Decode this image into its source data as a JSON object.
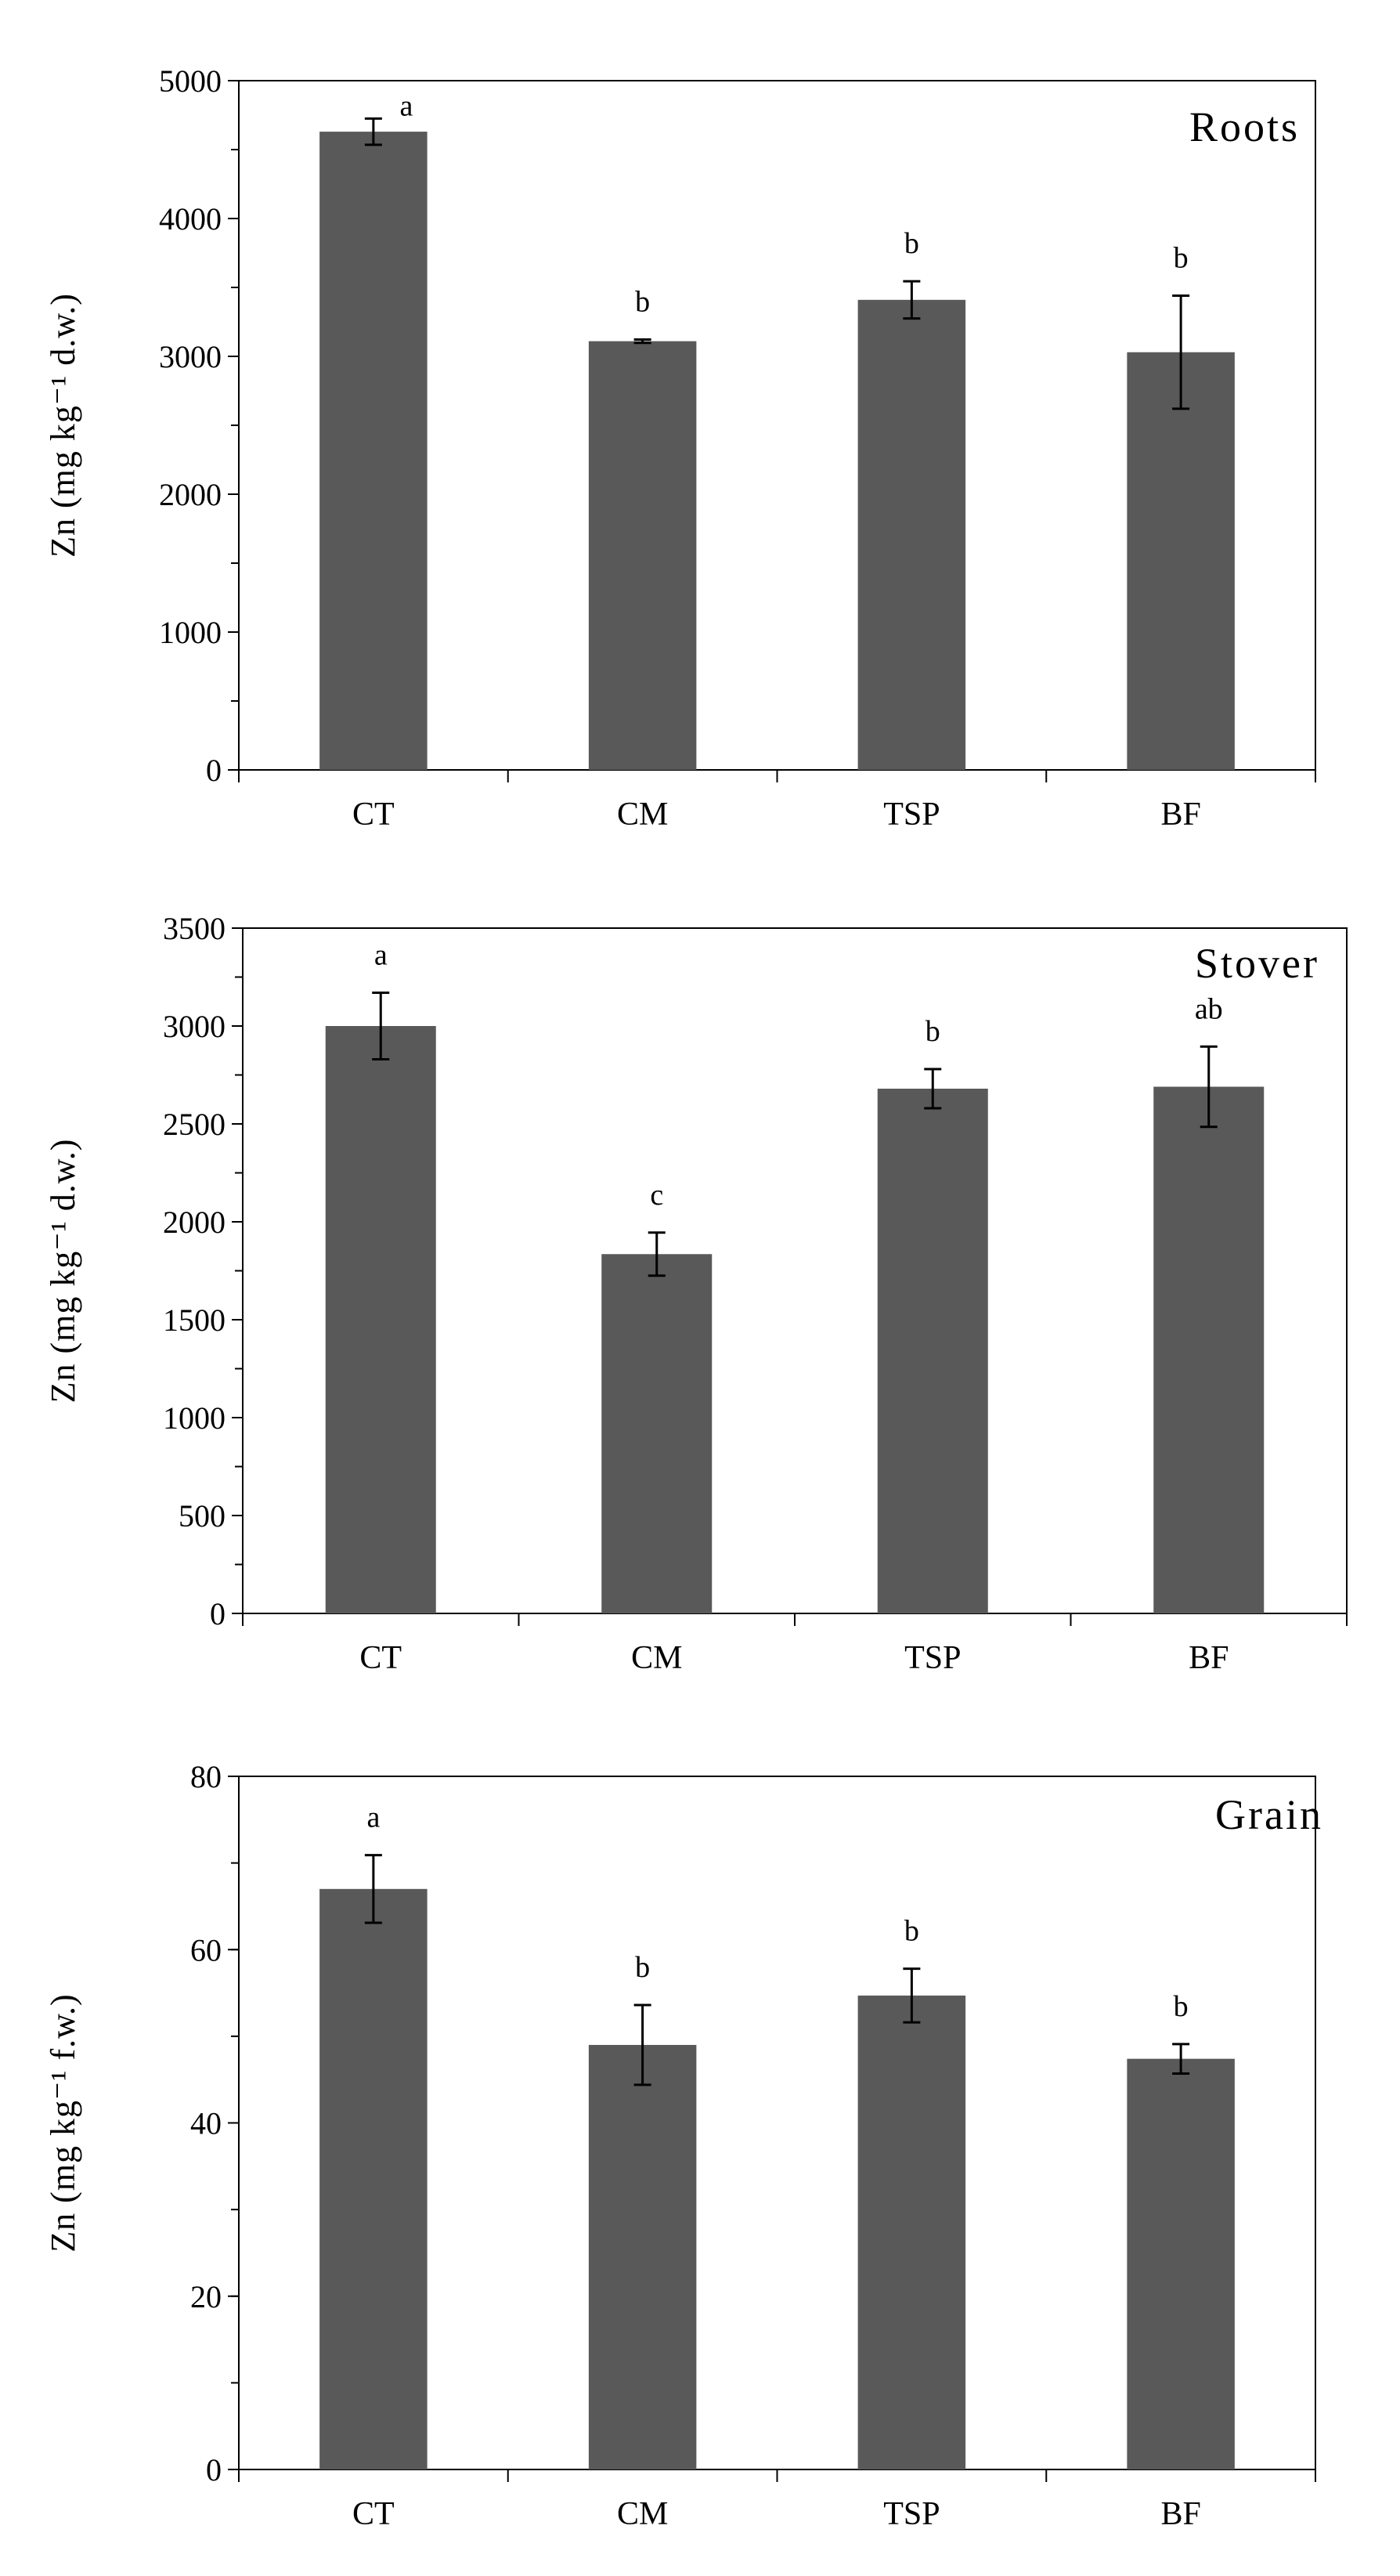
{
  "figure": {
    "bar_color": "#595959",
    "axis_color": "#000000",
    "background": "#ffffff"
  },
  "chart_data": [
    {
      "type": "bar",
      "title": "Roots",
      "categories": [
        "CT",
        "CM",
        "TSP",
        "BF"
      ],
      "values": [
        4630,
        3110,
        3410,
        3030
      ],
      "errors": [
        95,
        12,
        135,
        410
      ],
      "letters": [
        "a",
        "b",
        "b",
        "b"
      ],
      "xlabel": "",
      "ylabel": "Zn (mg kg⁻¹ d.w.)",
      "ylim": [
        0,
        5000
      ],
      "yticks": [
        0,
        1000,
        2000,
        3000,
        4000,
        5000
      ],
      "ytick_labels": [
        "0",
        "1000",
        "2000",
        "3000",
        "4000",
        "5000"
      ],
      "minor_step": 500,
      "legend": "none",
      "grid": false
    },
    {
      "type": "bar",
      "title": "Stover",
      "categories": [
        "CT",
        "CM",
        "TSP",
        "BF"
      ],
      "values": [
        3000,
        1835,
        2680,
        2690
      ],
      "errors": [
        170,
        110,
        100,
        205
      ],
      "letters": [
        "a",
        "c",
        "b",
        "ab"
      ],
      "xlabel": "",
      "ylabel": "Zn (mg kg⁻¹ d.w.)",
      "ylim": [
        0,
        3500
      ],
      "yticks": [
        0,
        500,
        1000,
        1500,
        2000,
        2500,
        3000,
        3500
      ],
      "ytick_labels": [
        "0",
        "500",
        "1000",
        "1500",
        "2000",
        "2500",
        "3000",
        "3500"
      ],
      "minor_step": 250,
      "legend": "none",
      "grid": false
    },
    {
      "type": "bar",
      "title": "Grain",
      "categories": [
        "CT",
        "CM",
        "TSP",
        "BF"
      ],
      "values": [
        67,
        49,
        54.7,
        47.4
      ],
      "errors": [
        3.9,
        4.6,
        3.1,
        1.7
      ],
      "letters": [
        "a",
        "b",
        "b",
        "b"
      ],
      "xlabel": "",
      "ylabel": "Zn (mg kg⁻¹ f.w.)",
      "ylim": [
        0,
        80
      ],
      "yticks": [
        0,
        20,
        40,
        60,
        80
      ],
      "ytick_labels": [
        "0",
        "20",
        "40",
        "60",
        "80"
      ],
      "minor_step": 10,
      "legend": "none",
      "grid": false
    }
  ]
}
